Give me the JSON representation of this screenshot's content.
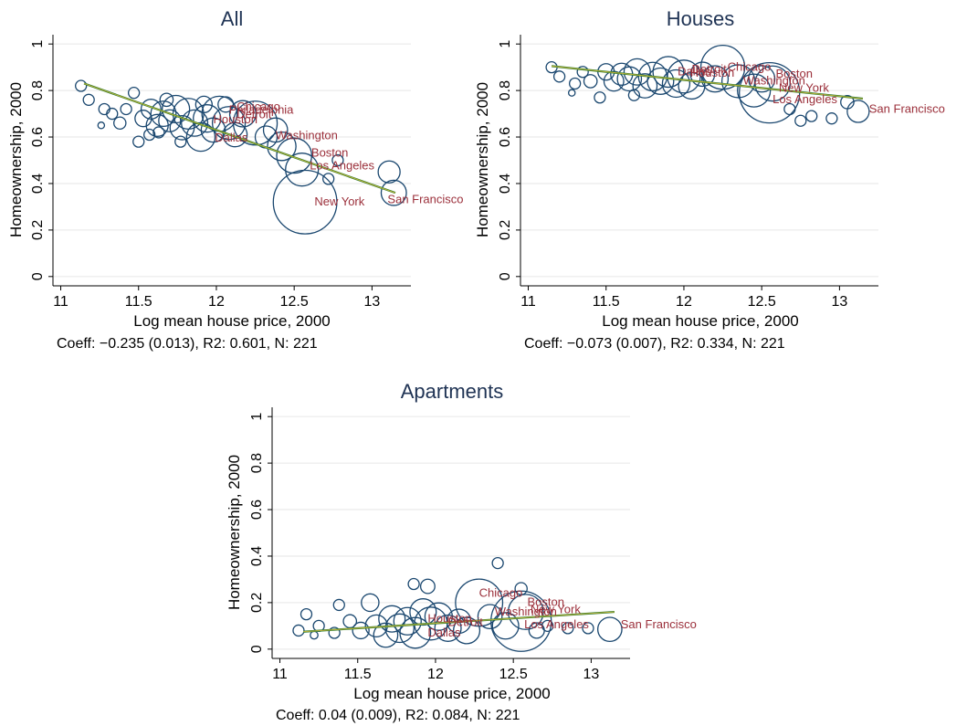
{
  "chart_data": [
    {
      "type": "scatter",
      "title": "All",
      "xlabel": "Log mean house price, 2000",
      "ylabel": "Homeownership, 2000",
      "note": "Coeff: −0.235 (0.013), R2: 0.601, N: 221",
      "xlim": [
        10.95,
        13.25
      ],
      "ylim": [
        -0.04,
        1.04
      ],
      "xticks": [
        11,
        11.5,
        12,
        12.5,
        13
      ],
      "yticks": [
        0,
        0.2,
        0.4,
        0.6,
        0.8,
        1
      ],
      "grid": true,
      "fit_line": {
        "x": [
          11.15,
          13.15
        ],
        "y": [
          0.83,
          0.36
        ]
      },
      "points": [
        {
          "x": 11.13,
          "y": 0.82,
          "size": 1.0
        },
        {
          "x": 11.18,
          "y": 0.76,
          "size": 1.0
        },
        {
          "x": 11.28,
          "y": 0.72,
          "size": 1.0
        },
        {
          "x": 11.33,
          "y": 0.7,
          "size": 1.0
        },
        {
          "x": 11.38,
          "y": 0.66,
          "size": 1.1
        },
        {
          "x": 11.42,
          "y": 0.72,
          "size": 1.0
        },
        {
          "x": 11.47,
          "y": 0.79,
          "size": 1.0
        },
        {
          "x": 11.5,
          "y": 0.58,
          "size": 1.0
        },
        {
          "x": 11.53,
          "y": 0.68,
          "size": 1.5
        },
        {
          "x": 11.58,
          "y": 0.72,
          "size": 1.8
        },
        {
          "x": 11.62,
          "y": 0.65,
          "size": 2.0
        },
        {
          "x": 11.66,
          "y": 0.7,
          "size": 2.3
        },
        {
          "x": 11.7,
          "y": 0.67,
          "size": 2.0
        },
        {
          "x": 11.74,
          "y": 0.72,
          "size": 2.5
        },
        {
          "x": 11.78,
          "y": 0.64,
          "size": 2.2
        },
        {
          "x": 11.82,
          "y": 0.7,
          "size": 2.8
        },
        {
          "x": 11.86,
          "y": 0.66,
          "size": 2.4
        },
        {
          "x": 11.9,
          "y": 0.6,
          "size": 2.6
        },
        {
          "x": 11.94,
          "y": 0.68,
          "size": 2.5
        },
        {
          "x": 11.98,
          "y": 0.63,
          "size": 2.2
        },
        {
          "x": 12.02,
          "y": 0.7,
          "size": 3.2
        },
        {
          "x": 12.08,
          "y": 0.66,
          "size": 3.0
        },
        {
          "x": 12.12,
          "y": 0.61,
          "size": 2.2
        },
        {
          "x": 12.17,
          "y": 0.7,
          "size": 2.4
        },
        {
          "x": 12.25,
          "y": 0.66,
          "size": 4.0
        },
        {
          "x": 12.32,
          "y": 0.6,
          "size": 2.0
        },
        {
          "x": 12.38,
          "y": 0.63,
          "size": 2.2
        },
        {
          "x": 12.42,
          "y": 0.56,
          "size": 2.6
        },
        {
          "x": 12.5,
          "y": 0.52,
          "size": 3.2
        },
        {
          "x": 12.55,
          "y": 0.46,
          "size": 3.0
        },
        {
          "x": 12.57,
          "y": 0.32,
          "size": 5.8
        },
        {
          "x": 12.72,
          "y": 0.42,
          "size": 1.0
        },
        {
          "x": 12.78,
          "y": 0.5,
          "size": 1.0
        },
        {
          "x": 13.11,
          "y": 0.45,
          "size": 2.0
        },
        {
          "x": 13.14,
          "y": 0.36,
          "size": 2.3
        },
        {
          "x": 11.63,
          "y": 0.62,
          "size": 1.0
        },
        {
          "x": 11.57,
          "y": 0.61,
          "size": 1.0
        },
        {
          "x": 11.77,
          "y": 0.58,
          "size": 1.0
        },
        {
          "x": 11.68,
          "y": 0.76,
          "size": 1.2
        },
        {
          "x": 11.92,
          "y": 0.74,
          "size": 1.5
        },
        {
          "x": 12.06,
          "y": 0.74,
          "size": 1.4
        },
        {
          "x": 11.26,
          "y": 0.65,
          "size": 0.6
        }
      ],
      "city_labels": [
        {
          "text": "Chicago",
          "x": 12.13,
          "y": 0.715
        },
        {
          "text": "Philadelphia",
          "x": 12.08,
          "y": 0.7
        },
        {
          "text": "Detroit",
          "x": 12.13,
          "y": 0.68
        },
        {
          "text": "Houston",
          "x": 11.98,
          "y": 0.66
        },
        {
          "text": "Dallas",
          "x": 11.99,
          "y": 0.58
        },
        {
          "text": "Washington",
          "x": 12.38,
          "y": 0.59
        },
        {
          "text": "Boston",
          "x": 12.61,
          "y": 0.515
        },
        {
          "text": "Los Angeles",
          "x": 12.6,
          "y": 0.46
        },
        {
          "text": "New York",
          "x": 12.63,
          "y": 0.305
        },
        {
          "text": "San Francisco",
          "x": 13.1,
          "y": 0.315
        }
      ]
    },
    {
      "type": "scatter",
      "title": "Houses",
      "xlabel": "Log mean house price, 2000",
      "ylabel": "Homeownership, 2000",
      "note": "Coeff: −0.073 (0.007), R2: 0.334, N: 221",
      "xlim": [
        10.95,
        13.25
      ],
      "ylim": [
        -0.04,
        1.04
      ],
      "xticks": [
        11,
        11.5,
        12,
        12.5,
        13
      ],
      "yticks": [
        0,
        0.2,
        0.4,
        0.6,
        0.8,
        1
      ],
      "grid": true,
      "fit_line": {
        "x": [
          11.15,
          13.15
        ],
        "y": [
          0.905,
          0.765
        ]
      },
      "points": [
        {
          "x": 11.15,
          "y": 0.9,
          "size": 1.0
        },
        {
          "x": 11.2,
          "y": 0.86,
          "size": 1.0
        },
        {
          "x": 11.3,
          "y": 0.83,
          "size": 1.0
        },
        {
          "x": 11.35,
          "y": 0.88,
          "size": 1.0
        },
        {
          "x": 11.4,
          "y": 0.84,
          "size": 1.2
        },
        {
          "x": 11.46,
          "y": 0.77,
          "size": 1.0
        },
        {
          "x": 11.5,
          "y": 0.88,
          "size": 1.5
        },
        {
          "x": 11.55,
          "y": 0.84,
          "size": 1.8
        },
        {
          "x": 11.6,
          "y": 0.87,
          "size": 2.0
        },
        {
          "x": 11.65,
          "y": 0.85,
          "size": 2.2
        },
        {
          "x": 11.7,
          "y": 0.88,
          "size": 2.4
        },
        {
          "x": 11.75,
          "y": 0.82,
          "size": 2.2
        },
        {
          "x": 11.8,
          "y": 0.86,
          "size": 2.6
        },
        {
          "x": 11.85,
          "y": 0.84,
          "size": 2.4
        },
        {
          "x": 11.9,
          "y": 0.88,
          "size": 2.8
        },
        {
          "x": 11.95,
          "y": 0.83,
          "size": 2.5
        },
        {
          "x": 12.0,
          "y": 0.86,
          "size": 3.0
        },
        {
          "x": 12.05,
          "y": 0.82,
          "size": 2.4
        },
        {
          "x": 12.12,
          "y": 0.87,
          "size": 2.2
        },
        {
          "x": 12.2,
          "y": 0.85,
          "size": 2.4
        },
        {
          "x": 12.25,
          "y": 0.9,
          "size": 4.0
        },
        {
          "x": 12.35,
          "y": 0.84,
          "size": 3.0
        },
        {
          "x": 12.45,
          "y": 0.8,
          "size": 3.0
        },
        {
          "x": 12.5,
          "y": 0.85,
          "size": 2.4
        },
        {
          "x": 12.55,
          "y": 0.79,
          "size": 5.5
        },
        {
          "x": 12.57,
          "y": 0.83,
          "size": 3.2
        },
        {
          "x": 12.75,
          "y": 0.67,
          "size": 1.0
        },
        {
          "x": 12.82,
          "y": 0.69,
          "size": 1.0
        },
        {
          "x": 12.95,
          "y": 0.68,
          "size": 1.0
        },
        {
          "x": 13.05,
          "y": 0.75,
          "size": 1.2
        },
        {
          "x": 13.12,
          "y": 0.71,
          "size": 2.0
        },
        {
          "x": 11.28,
          "y": 0.79,
          "size": 0.6
        },
        {
          "x": 11.68,
          "y": 0.78,
          "size": 1.0
        },
        {
          "x": 12.68,
          "y": 0.72,
          "size": 1.0
        }
      ],
      "city_labels": [
        {
          "text": "Chicago",
          "x": 12.28,
          "y": 0.885
        },
        {
          "text": "Detroit",
          "x": 12.05,
          "y": 0.875
        },
        {
          "text": "Dallas",
          "x": 11.96,
          "y": 0.865
        },
        {
          "text": "Houston",
          "x": 12.04,
          "y": 0.86
        },
        {
          "text": "Washington",
          "x": 12.38,
          "y": 0.825
        },
        {
          "text": "Boston",
          "x": 12.59,
          "y": 0.855
        },
        {
          "text": "New York",
          "x": 12.61,
          "y": 0.795
        },
        {
          "text": "Los Angeles",
          "x": 12.57,
          "y": 0.745
        },
        {
          "text": "San Francisco",
          "x": 13.19,
          "y": 0.705
        }
      ]
    },
    {
      "type": "scatter",
      "title": "Apartments",
      "xlabel": "Log mean house price, 2000",
      "ylabel": "Homeownership, 2000",
      "note": "Coeff: 0.04 (0.009), R2: 0.084, N: 221",
      "xlim": [
        10.95,
        13.25
      ],
      "ylim": [
        -0.04,
        1.04
      ],
      "xticks": [
        11,
        11.5,
        12,
        12.5,
        13
      ],
      "yticks": [
        0,
        0.2,
        0.4,
        0.6,
        0.8,
        1
      ],
      "grid": true,
      "fit_line": {
        "x": [
          11.15,
          13.15
        ],
        "y": [
          0.075,
          0.16
        ]
      },
      "points": [
        {
          "x": 11.12,
          "y": 0.08,
          "size": 1.0
        },
        {
          "x": 11.17,
          "y": 0.15,
          "size": 1.0
        },
        {
          "x": 11.25,
          "y": 0.1,
          "size": 1.0
        },
        {
          "x": 11.35,
          "y": 0.07,
          "size": 1.0
        },
        {
          "x": 11.38,
          "y": 0.19,
          "size": 1.0
        },
        {
          "x": 11.45,
          "y": 0.12,
          "size": 1.2
        },
        {
          "x": 11.52,
          "y": 0.08,
          "size": 1.5
        },
        {
          "x": 11.58,
          "y": 0.2,
          "size": 1.6
        },
        {
          "x": 11.62,
          "y": 0.1,
          "size": 2.0
        },
        {
          "x": 11.68,
          "y": 0.06,
          "size": 2.2
        },
        {
          "x": 11.72,
          "y": 0.13,
          "size": 2.4
        },
        {
          "x": 11.77,
          "y": 0.09,
          "size": 2.6
        },
        {
          "x": 11.82,
          "y": 0.12,
          "size": 2.5
        },
        {
          "x": 11.87,
          "y": 0.07,
          "size": 2.8
        },
        {
          "x": 11.92,
          "y": 0.16,
          "size": 2.4
        },
        {
          "x": 11.97,
          "y": 0.11,
          "size": 3.0
        },
        {
          "x": 12.02,
          "y": 0.14,
          "size": 2.5
        },
        {
          "x": 12.08,
          "y": 0.09,
          "size": 2.4
        },
        {
          "x": 12.15,
          "y": 0.12,
          "size": 2.2
        },
        {
          "x": 12.2,
          "y": 0.08,
          "size": 2.4
        },
        {
          "x": 12.28,
          "y": 0.2,
          "size": 4.3
        },
        {
          "x": 12.35,
          "y": 0.14,
          "size": 2.2
        },
        {
          "x": 12.4,
          "y": 0.37,
          "size": 1.0
        },
        {
          "x": 12.45,
          "y": 0.1,
          "size": 2.4
        },
        {
          "x": 12.55,
          "y": 0.12,
          "size": 5.5
        },
        {
          "x": 12.58,
          "y": 0.16,
          "size": 3.2
        },
        {
          "x": 12.65,
          "y": 0.08,
          "size": 1.4
        },
        {
          "x": 12.72,
          "y": 0.1,
          "size": 1.0
        },
        {
          "x": 12.85,
          "y": 0.09,
          "size": 1.0
        },
        {
          "x": 12.98,
          "y": 0.09,
          "size": 1.0
        },
        {
          "x": 13.12,
          "y": 0.085,
          "size": 2.2
        },
        {
          "x": 11.22,
          "y": 0.06,
          "size": 0.7
        },
        {
          "x": 11.95,
          "y": 0.27,
          "size": 1.3
        },
        {
          "x": 11.86,
          "y": 0.28,
          "size": 1.0
        },
        {
          "x": 12.55,
          "y": 0.26,
          "size": 1.1
        }
      ],
      "city_labels": [
        {
          "text": "Chicago",
          "x": 12.28,
          "y": 0.225
        },
        {
          "text": "Boston",
          "x": 12.59,
          "y": 0.185
        },
        {
          "text": "New York",
          "x": 12.61,
          "y": 0.155
        },
        {
          "text": "Washington",
          "x": 12.38,
          "y": 0.145
        },
        {
          "text": "Houston",
          "x": 11.95,
          "y": 0.115
        },
        {
          "text": "Detroit",
          "x": 12.08,
          "y": 0.1
        },
        {
          "text": "Dallas",
          "x": 11.95,
          "y": 0.055
        },
        {
          "text": "Los Angeles",
          "x": 12.57,
          "y": 0.09
        },
        {
          "text": "San Francisco",
          "x": 13.19,
          "y": 0.09
        }
      ]
    }
  ],
  "colors": {
    "title": "#1f3354",
    "bubble": "#1a476f",
    "fit_line_outer": "#2e7d32",
    "fit_line_inner": "#c9b43a",
    "city_label": "#9b2f3a",
    "grid": "#e6e6e6"
  }
}
